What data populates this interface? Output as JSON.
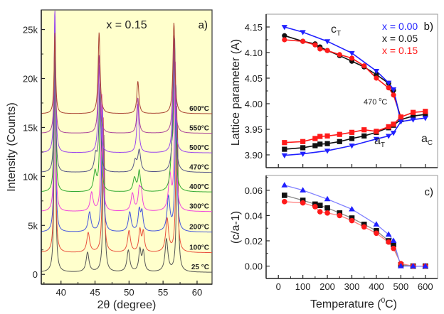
{
  "chart_data": [
    {
      "id": "a",
      "type": "line",
      "title": "x = 0.15",
      "panel_label": "a)",
      "xlabel": "2θ (degree)",
      "ylabel": "Intensity (Counts)",
      "xlim": [
        37.1,
        62.2
      ],
      "ylim": [
        -1000,
        27000
      ],
      "xticks": [
        40,
        45,
        50,
        55,
        60
      ],
      "xtick_labels": [
        "40",
        "45",
        "50",
        "55",
        "60"
      ],
      "yticks": [
        0,
        5000,
        10000,
        15000,
        20000,
        25000
      ],
      "ytick_labels": [
        "0",
        "5k",
        "10k",
        "15k",
        "20k",
        "25k"
      ],
      "background": "#ffffcc",
      "grid": false,
      "series": [
        {
          "name": "25 °C",
          "color": "#555555",
          "offset": 0,
          "peaks": [
            [
              39.1,
              24000,
              0.12
            ],
            [
              43.9,
              2000,
              0.25
            ],
            [
              46.3,
              14000,
              0.15
            ],
            [
              49.9,
              2200,
              0.25
            ],
            [
              51.6,
              2200,
              0.2
            ],
            [
              52.1,
              2000,
              0.2
            ],
            [
              55.5,
              3300,
              0.25
            ],
            [
              57.1,
              15000,
              0.15
            ]
          ]
        },
        {
          "name": "100°C",
          "color": "#e8503c",
          "offset": 2000,
          "peaks": [
            [
              39.1,
              22000,
              0.12
            ],
            [
              44.0,
              2000,
              0.25
            ],
            [
              46.2,
              14000,
              0.15
            ],
            [
              50.0,
              2200,
              0.25
            ],
            [
              51.6,
              2200,
              0.2
            ],
            [
              52.1,
              2000,
              0.2
            ],
            [
              55.6,
              3400,
              0.25
            ],
            [
              57.0,
              15000,
              0.15
            ]
          ]
        },
        {
          "name": "200°C",
          "color": "#4455dd",
          "offset": 4100,
          "peaks": [
            [
              39.1,
              20000,
              0.12
            ],
            [
              44.2,
              2000,
              0.25
            ],
            [
              46.1,
              13000,
              0.15
            ],
            [
              50.1,
              2000,
              0.25
            ],
            [
              51.5,
              2100,
              0.2
            ],
            [
              51.9,
              1900,
              0.2
            ],
            [
              55.8,
              3500,
              0.25
            ],
            [
              56.9,
              15000,
              0.15
            ]
          ]
        },
        {
          "name": "300°C",
          "color": "#ee44dd",
          "offset": 6200,
          "peaks": [
            [
              39.1,
              18500,
              0.12
            ],
            [
              44.5,
              1900,
              0.25
            ],
            [
              46.0,
              12000,
              0.15
            ],
            [
              50.5,
              1800,
              0.25
            ],
            [
              51.5,
              2000,
              0.2
            ],
            [
              51.8,
              1800,
              0.2
            ],
            [
              56.0,
              3600,
              0.25
            ],
            [
              56.8,
              15000,
              0.15
            ]
          ]
        },
        {
          "name": "400°C",
          "color": "#33aa33",
          "offset": 8200,
          "peaks": [
            [
              39.1,
              17000,
              0.12
            ],
            [
              45.0,
              2000,
              0.25
            ],
            [
              45.8,
              10000,
              0.15
            ],
            [
              50.8,
              1400,
              0.25
            ],
            [
              51.5,
              2100,
              0.2
            ],
            [
              56.3,
              3500,
              0.25
            ],
            [
              56.7,
              14000,
              0.15
            ]
          ]
        },
        {
          "name": "470°C",
          "color": "#555588",
          "offset": 10200,
          "peaks": [
            [
              39.1,
              16000,
              0.12
            ],
            [
              45.1,
              1700,
              0.25
            ],
            [
              45.7,
              9000,
              0.15
            ],
            [
              50.9,
              1100,
              0.25
            ],
            [
              51.5,
              2200,
              0.25
            ],
            [
              56.5,
              3000,
              0.25
            ],
            [
              56.7,
              12000,
              0.15
            ]
          ]
        },
        {
          "name": "500°C",
          "color": "#9944ee",
          "offset": 12200,
          "peaks": [
            [
              39.1,
              15000,
              0.13
            ],
            [
              45.6,
              9000,
              0.17
            ],
            [
              51.3,
              5000,
              0.18
            ],
            [
              56.6,
              12000,
              0.17
            ]
          ]
        },
        {
          "name": "550°C",
          "color": "#aa4499",
          "offset": 14200,
          "peaks": [
            [
              39.1,
              10000,
              0.13
            ],
            [
              45.6,
              8000,
              0.17
            ],
            [
              51.3,
              3600,
              0.18
            ],
            [
              56.6,
              10000,
              0.17
            ]
          ]
        },
        {
          "name": "600°C",
          "color": "#aa4433",
          "offset": 16200,
          "peaks": [
            [
              39.1,
              8300,
              0.13
            ],
            [
              45.6,
              8300,
              0.17
            ],
            [
              51.3,
              3300,
              0.18
            ],
            [
              56.6,
              9300,
              0.17
            ]
          ]
        }
      ]
    },
    {
      "id": "b",
      "type": "line",
      "panel_label": "b)",
      "xlabel": "",
      "ylabel": "Lattice parameter (A)",
      "xlim": [
        -50,
        650
      ],
      "ylim": [
        3.875,
        4.175
      ],
      "yticks": [
        3.9,
        3.95,
        4.0,
        4.05,
        4.1,
        4.15
      ],
      "ytick_labels": [
        "3.90",
        "3.95",
        "4.00",
        "4.05",
        "4.10",
        "4.15"
      ],
      "grid": false,
      "annotations": [
        "c_T",
        "a_T",
        "a_C",
        "470 °C"
      ],
      "legend": {
        "placement": "top-right",
        "entries": [
          {
            "label": "x = 0.00",
            "color": "#2020ff"
          },
          {
            "label": "x = 0.05",
            "color": "#111111"
          },
          {
            "label": "x = 0.15",
            "color": "#ff1a1a"
          }
        ]
      },
      "series": [
        {
          "name": "x = 0.00 c",
          "color": "#2020ff",
          "marker": "triangle-down",
          "x": [
            25,
            100,
            200,
            300,
            400,
            450,
            470
          ],
          "y": [
            4.15,
            4.14,
            4.122,
            4.099,
            4.064,
            4.041,
            4.028
          ]
        },
        {
          "name": "x = 0.05 c",
          "color": "#111111",
          "marker": "circle",
          "x": [
            25,
            100,
            150,
            170,
            200,
            250,
            300,
            350,
            400,
            450,
            470
          ],
          "y": [
            4.133,
            4.122,
            4.117,
            4.111,
            4.104,
            4.094,
            4.083,
            4.072,
            4.057,
            4.04,
            4.026
          ]
        },
        {
          "name": "x = 0.15 c",
          "color": "#ff1a1a",
          "marker": "circle",
          "x": [
            25,
            100,
            150,
            170,
            200,
            250,
            300,
            350,
            400,
            450,
            470
          ],
          "y": [
            4.125,
            4.122,
            4.115,
            4.107,
            4.104,
            4.096,
            4.089,
            4.074,
            4.05,
            4.031,
            4.017
          ]
        },
        {
          "name": "x = 0.00 a",
          "color": "#2020ff",
          "marker": "triangle-down",
          "x": [
            25,
            100,
            200,
            300,
            400,
            450,
            470,
            500,
            550,
            600
          ],
          "y": [
            3.899,
            3.902,
            3.908,
            3.918,
            3.931,
            3.937,
            3.943,
            3.965,
            3.969,
            3.972
          ]
        },
        {
          "name": "x = 0.05 a",
          "color": "#111111",
          "marker": "square",
          "x": [
            25,
            100,
            150,
            170,
            200,
            250,
            300,
            350,
            400,
            450,
            470,
            500,
            550,
            600
          ],
          "y": [
            3.911,
            3.914,
            3.918,
            3.921,
            3.922,
            3.926,
            3.932,
            3.937,
            3.944,
            3.953,
            3.958,
            3.969,
            3.976,
            3.979
          ]
        },
        {
          "name": "x = 0.15 a",
          "color": "#ff1a1a",
          "marker": "square",
          "x": [
            25,
            100,
            150,
            170,
            200,
            250,
            300,
            350,
            400,
            450,
            470,
            500,
            550,
            600
          ],
          "y": [
            3.924,
            3.926,
            3.932,
            3.936,
            3.937,
            3.94,
            3.944,
            3.949,
            3.946,
            3.955,
            3.96,
            3.974,
            3.983,
            3.985
          ]
        }
      ],
      "transition_links": [
        {
          "color": "#ff1a1a",
          "from": [
            470,
            4.017
          ],
          "to": [
            500,
            3.974
          ]
        },
        {
          "color": "#111111",
          "from": [
            470,
            4.026
          ],
          "to": [
            500,
            3.969
          ]
        },
        {
          "color": "#2020ff",
          "from": [
            470,
            4.028
          ],
          "to": [
            500,
            3.965
          ]
        }
      ]
    },
    {
      "id": "c",
      "type": "line",
      "panel_label": "c)",
      "xlabel": "Temperature (°C)",
      "ylabel": "(c/a-1)",
      "xlim": [
        -50,
        650
      ],
      "ylim": [
        -0.0098,
        0.0717
      ],
      "xticks": [
        0,
        100,
        200,
        300,
        400,
        500,
        600
      ],
      "xtick_labels": [
        "0",
        "100",
        "200",
        "300",
        "400",
        "500",
        "600"
      ],
      "yticks": [
        0.0,
        0.02,
        0.04,
        0.06
      ],
      "ytick_labels": [
        "0.00",
        "0.02",
        "0.04",
        "0.06"
      ],
      "grid": false,
      "series": [
        {
          "name": "x = 0.00",
          "color": "#2020ff",
          "line_color": "#8080ff",
          "marker": "triangle-up",
          "x": [
            25,
            100,
            200,
            300,
            400,
            450,
            470,
            500,
            550,
            600
          ],
          "y": [
            0.064,
            0.06,
            0.053,
            0.045,
            0.033,
            0.025,
            0.02,
            0.0,
            0.0,
            0.0
          ]
        },
        {
          "name": "x = 0.05",
          "color": "#111111",
          "line_color": "#888888",
          "marker": "square",
          "x": [
            25,
            100,
            150,
            170,
            200,
            250,
            300,
            350,
            400,
            450,
            470,
            500,
            550,
            600
          ],
          "y": [
            0.056,
            0.052,
            0.049,
            0.048,
            0.046,
            0.042,
            0.038,
            0.033,
            0.028,
            0.02,
            0.017,
            0.001,
            0.0,
            0.0
          ]
        },
        {
          "name": "x = 0.15",
          "color": "#ff1a1a",
          "line_color": "#ff8080",
          "marker": "circle",
          "x": [
            25,
            100,
            150,
            170,
            200,
            250,
            300,
            350,
            400,
            450,
            470,
            500,
            550,
            600
          ],
          "y": [
            0.051,
            0.05,
            0.047,
            0.043,
            0.042,
            0.04,
            0.036,
            0.031,
            0.026,
            0.019,
            0.014,
            0.002,
            0.0,
            0.0
          ]
        }
      ]
    }
  ],
  "labels": {
    "a_title": "x = 0.15",
    "a_panel": "a)",
    "a_xlabel": "2θ (degree)",
    "a_ylabel": "Intensity (Counts)",
    "b_panel": "b)",
    "b_ylabel": "Lattice parameter (A)",
    "b_cT_main": "c",
    "b_cT_sub": "T",
    "b_aT_main": "a",
    "b_aT_sub": "T",
    "b_aC_main": "a",
    "b_aC_sub": "C",
    "b_470_num": "470 ",
    "b_470_deg": "o",
    "b_470_unit": "C",
    "b_legend_0": "x = 0.00",
    "b_legend_1": "x = 0.05",
    "b_legend_2": "x = 0.15",
    "c_panel": "c)",
    "c_ylabel": "(c/a-1)",
    "c_xlabel_pre": "Temperature (",
    "c_xlabel_deg": "0",
    "c_xlabel_post": "C)"
  }
}
